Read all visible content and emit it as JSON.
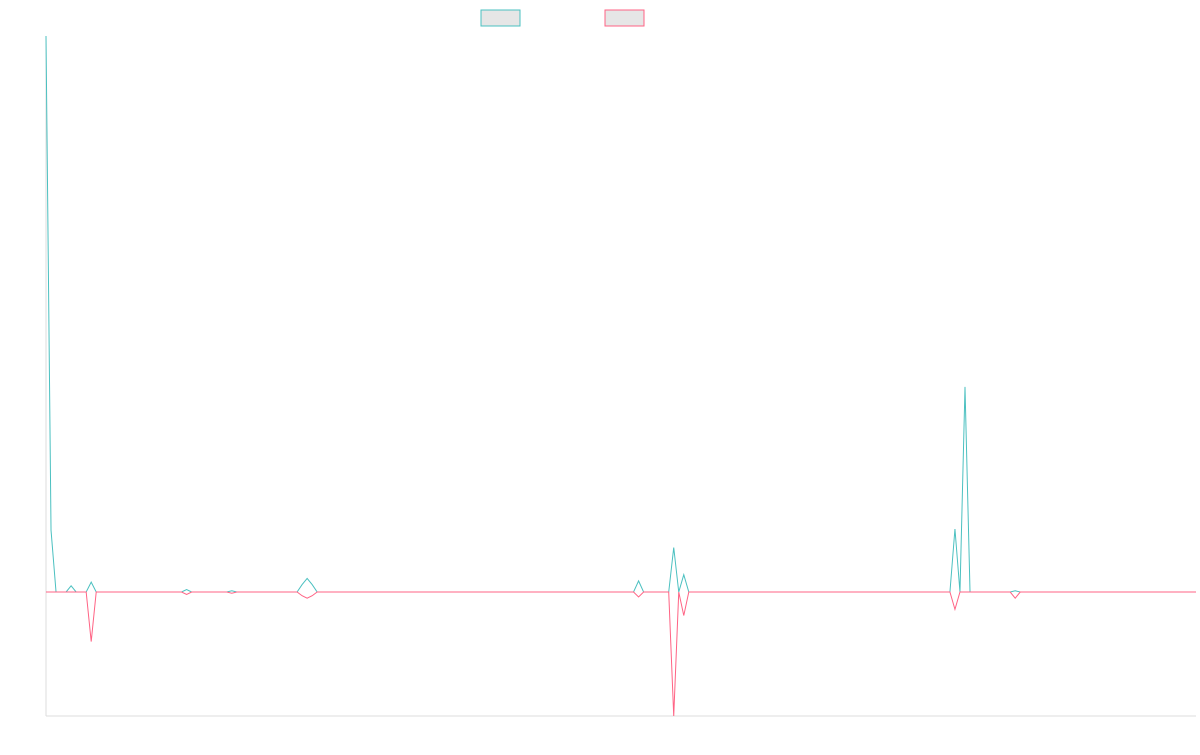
{
  "chart_data": {
    "type": "line",
    "title": "",
    "xlabel": "",
    "ylabel": "",
    "grid": false,
    "legend_position": "top-center",
    "x_range": [
      0,
      229
    ],
    "ylim": [
      -10,
      45
    ],
    "series": [
      {
        "name": "",
        "color": "#4bc0c0",
        "legend_fill": "#e6e6e6",
        "points": [
          [
            0,
            45
          ],
          [
            1,
            5
          ],
          [
            2,
            0
          ],
          [
            3,
            0
          ],
          [
            4,
            0
          ],
          [
            5,
            0.5
          ],
          [
            6,
            0
          ],
          [
            7,
            0
          ],
          [
            8,
            0
          ],
          [
            9,
            0.8
          ],
          [
            10,
            0
          ],
          [
            27,
            0
          ],
          [
            28,
            0.2
          ],
          [
            29,
            0
          ],
          [
            36,
            0
          ],
          [
            37,
            0.1
          ],
          [
            38,
            0
          ],
          [
            50,
            0
          ],
          [
            51,
            0.6
          ],
          [
            52,
            1.1
          ],
          [
            53,
            0.6
          ],
          [
            54,
            0
          ],
          [
            117,
            0
          ],
          [
            118,
            0.9
          ],
          [
            119,
            0
          ],
          [
            124,
            0
          ],
          [
            125,
            3.6
          ],
          [
            126,
            0
          ],
          [
            127,
            1.4
          ],
          [
            128,
            0
          ],
          [
            180,
            0
          ],
          [
            181,
            5.1
          ],
          [
            182,
            0
          ],
          [
            183,
            16.6
          ],
          [
            184,
            0
          ],
          [
            192,
            0
          ],
          [
            193,
            0.1
          ],
          [
            194,
            0
          ],
          [
            229,
            0
          ]
        ]
      },
      {
        "name": "",
        "color": "#ff6384",
        "legend_fill": "#e6e6e6",
        "points": [
          [
            0,
            0
          ],
          [
            1,
            0
          ],
          [
            2,
            0
          ],
          [
            3,
            0
          ],
          [
            4,
            0
          ],
          [
            5,
            0
          ],
          [
            6,
            0
          ],
          [
            7,
            0
          ],
          [
            8,
            0
          ],
          [
            9,
            -4
          ],
          [
            10,
            0
          ],
          [
            27,
            0
          ],
          [
            28,
            -0.2
          ],
          [
            29,
            0
          ],
          [
            36,
            0
          ],
          [
            37,
            -0.1
          ],
          [
            38,
            0
          ],
          [
            50,
            0
          ],
          [
            51,
            -0.3
          ],
          [
            52,
            -0.5
          ],
          [
            53,
            -0.3
          ],
          [
            54,
            0
          ],
          [
            117,
            0
          ],
          [
            118,
            -0.4
          ],
          [
            119,
            0
          ],
          [
            124,
            0
          ],
          [
            125,
            -10
          ],
          [
            126,
            0
          ],
          [
            127,
            -1.9
          ],
          [
            128,
            0
          ],
          [
            180,
            0
          ],
          [
            181,
            -1.4
          ],
          [
            182,
            0
          ],
          [
            192,
            0
          ],
          [
            193,
            -0.5
          ],
          [
            194,
            0
          ],
          [
            229,
            0
          ]
        ]
      }
    ]
  }
}
